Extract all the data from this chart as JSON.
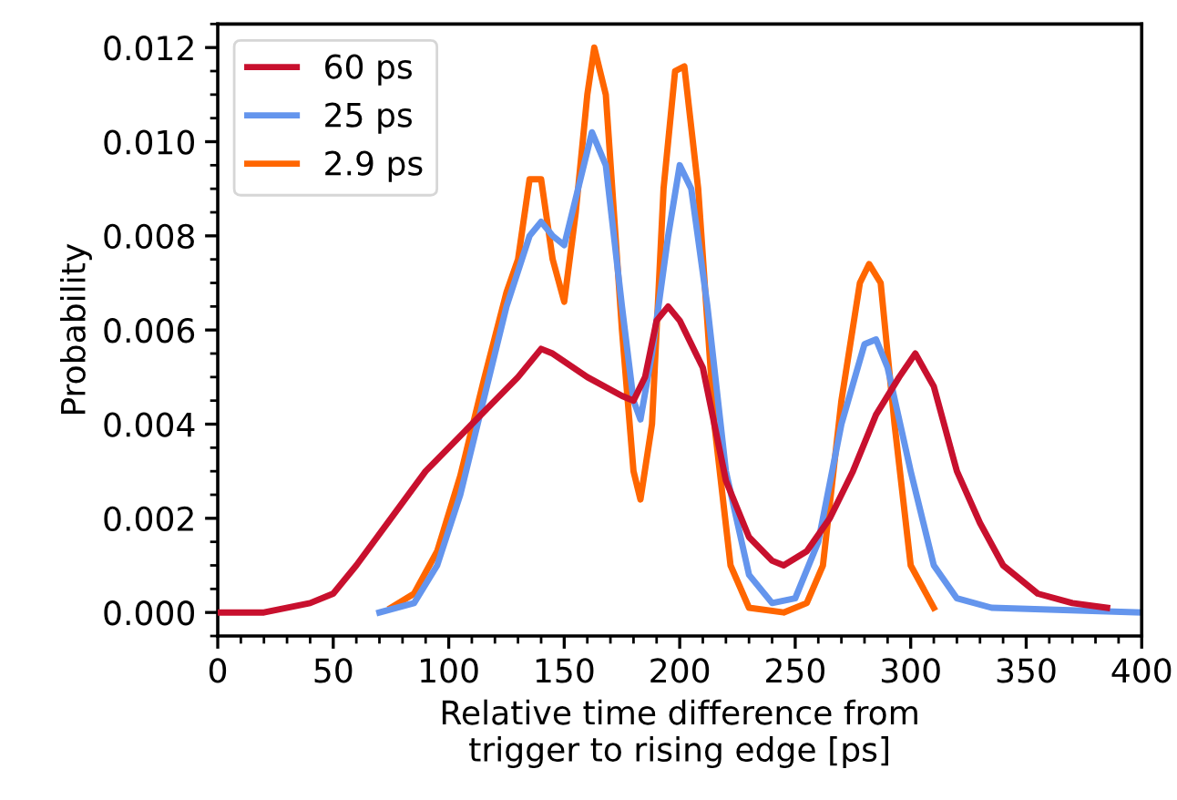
{
  "chart_data": {
    "type": "line",
    "xlabel": "Relative time difference from\ntrigger to rising edge [ps]",
    "ylabel": "Probability",
    "xlim": [
      0,
      400
    ],
    "ylim": [
      -0.0005,
      0.0125
    ],
    "xticks": [
      0,
      50,
      100,
      150,
      200,
      250,
      300,
      350,
      400
    ],
    "yticks": [
      {
        "value": 0,
        "label": "0.000"
      },
      {
        "value": 0.002,
        "label": "0.002"
      },
      {
        "value": 0.004,
        "label": "0.004"
      },
      {
        "value": 0.006,
        "label": "0.006"
      },
      {
        "value": 0.008,
        "label": "0.008"
      },
      {
        "value": 0.01,
        "label": "0.010"
      },
      {
        "value": 0.012,
        "label": "0.012"
      }
    ],
    "grid": false,
    "legend": "top left",
    "marker": "none",
    "line_style": "solid",
    "series": [
      {
        "name": "60 ps",
        "color": "#c8102e",
        "x": [
          0,
          20,
          40,
          50,
          60,
          75,
          90,
          100,
          110,
          120,
          130,
          140,
          145,
          160,
          175,
          180,
          185,
          190,
          195,
          200,
          210,
          215,
          220,
          230,
          240,
          245,
          255,
          265,
          275,
          285,
          295,
          302,
          310,
          320,
          330,
          340,
          355,
          370,
          385
        ],
        "values": [
          0,
          0,
          0.0002,
          0.0004,
          0.001,
          0.002,
          0.003,
          0.0035,
          0.004,
          0.0045,
          0.005,
          0.0056,
          0.0055,
          0.005,
          0.0046,
          0.0045,
          0.005,
          0.0062,
          0.0065,
          0.0062,
          0.0052,
          0.004,
          0.0028,
          0.0016,
          0.0011,
          0.001,
          0.0013,
          0.002,
          0.003,
          0.0042,
          0.005,
          0.0055,
          0.0048,
          0.003,
          0.0019,
          0.001,
          0.0004,
          0.0002,
          0.0001
        ]
      },
      {
        "name": "25 ps",
        "color": "#6495ed",
        "x": [
          70,
          85,
          95,
          105,
          115,
          125,
          135,
          140,
          145,
          150,
          155,
          162,
          168,
          175,
          180,
          183,
          188,
          195,
          200,
          205,
          212,
          220,
          230,
          240,
          250,
          260,
          270,
          280,
          285,
          290,
          300,
          310,
          320,
          335,
          400
        ],
        "values": [
          0,
          0.0002,
          0.001,
          0.0025,
          0.0045,
          0.0065,
          0.008,
          0.0083,
          0.008,
          0.0078,
          0.0088,
          0.0102,
          0.0095,
          0.0065,
          0.0045,
          0.0041,
          0.0055,
          0.008,
          0.0095,
          0.009,
          0.0065,
          0.003,
          0.0008,
          0.0002,
          0.0003,
          0.0015,
          0.004,
          0.0057,
          0.0058,
          0.0052,
          0.003,
          0.001,
          0.0003,
          0.0001,
          0
        ]
      },
      {
        "name": "2.9 ps",
        "color": "#ff6600",
        "x": [
          75,
          85,
          95,
          105,
          115,
          125,
          130,
          135,
          140,
          145,
          150,
          155,
          160,
          163,
          168,
          175,
          180,
          183,
          188,
          193,
          198,
          202,
          208,
          215,
          222,
          230,
          245,
          255,
          262,
          270,
          278,
          282,
          287,
          293,
          300,
          310
        ],
        "values": [
          0.0001,
          0.0004,
          0.0013,
          0.0029,
          0.0049,
          0.0068,
          0.0075,
          0.0092,
          0.0092,
          0.0075,
          0.0066,
          0.0085,
          0.011,
          0.012,
          0.011,
          0.006,
          0.003,
          0.0024,
          0.004,
          0.009,
          0.0115,
          0.0116,
          0.009,
          0.004,
          0.001,
          0.0001,
          0,
          0.0002,
          0.001,
          0.0045,
          0.007,
          0.0074,
          0.007,
          0.004,
          0.001,
          0.0001
        ]
      }
    ]
  }
}
